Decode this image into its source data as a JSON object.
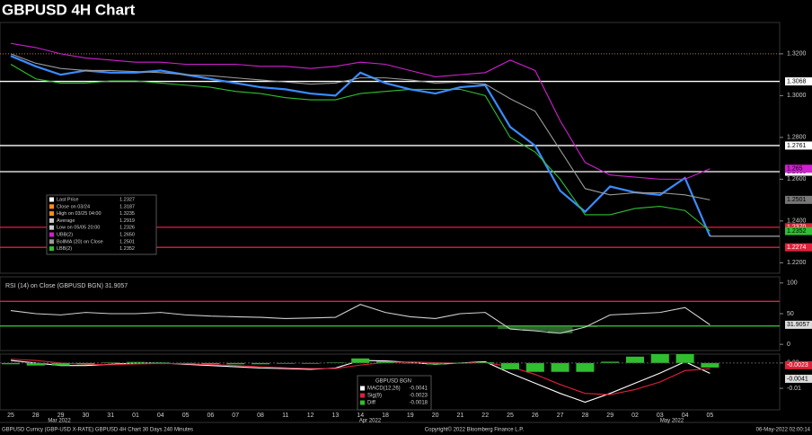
{
  "chart_data": [
    {
      "type": "line",
      "title": "GBPUSD 4H Chart",
      "categories": [
        "25",
        "28",
        "29",
        "30",
        "31",
        "01",
        "04",
        "05",
        "06",
        "07",
        "08",
        "11",
        "12",
        "13",
        "14",
        "18",
        "19",
        "20",
        "21",
        "22",
        "25",
        "26",
        "27",
        "28",
        "29",
        "02",
        "03",
        "04",
        "05"
      ],
      "month_labels": [
        "Mar 2022",
        "Apr 2022",
        "May 2022"
      ],
      "series": [
        {
          "name": "Last Price",
          "color": "#3a8cff",
          "values": [
            1.319,
            1.314,
            1.31,
            1.312,
            1.311,
            1.311,
            1.312,
            1.31,
            1.308,
            1.306,
            1.304,
            1.303,
            1.301,
            1.3,
            1.311,
            1.306,
            1.303,
            1.301,
            1.304,
            1.305,
            1.285,
            1.276,
            1.2545,
            1.2444,
            1.2565,
            1.2537,
            1.2525,
            1.2606,
            1.2327
          ]
        },
        {
          "name": "UBB(2)",
          "color": "#d020d0",
          "values": [
            1.325,
            1.323,
            1.32,
            1.318,
            1.317,
            1.316,
            1.316,
            1.315,
            1.315,
            1.315,
            1.314,
            1.314,
            1.313,
            1.314,
            1.316,
            1.315,
            1.312,
            1.309,
            1.31,
            1.311,
            1.317,
            1.312,
            1.288,
            1.268,
            1.262,
            1.261,
            1.26,
            1.26,
            1.265
          ]
        },
        {
          "name": "BollMA (20) on Close",
          "color": "#9a9a9a",
          "values": [
            1.32,
            1.3155,
            1.313,
            1.312,
            1.312,
            1.3115,
            1.311,
            1.31,
            1.3095,
            1.3085,
            1.3075,
            1.3065,
            1.3055,
            1.306,
            1.3085,
            1.3085,
            1.3075,
            1.306,
            1.3065,
            1.3055,
            1.2985,
            1.2925,
            1.274,
            1.2555,
            1.2525,
            1.2535,
            1.2535,
            1.2525,
            1.2501
          ]
        },
        {
          "name": "LBB(2)",
          "color": "#2fbf2f",
          "values": [
            1.315,
            1.308,
            1.306,
            1.306,
            1.307,
            1.307,
            1.306,
            1.305,
            1.304,
            1.302,
            1.301,
            1.299,
            1.298,
            1.298,
            1.301,
            1.302,
            1.303,
            1.303,
            1.303,
            1.3,
            1.28,
            1.273,
            1.26,
            1.243,
            1.243,
            1.246,
            1.247,
            1.245,
            1.2352
          ]
        }
      ],
      "legend": [
        {
          "name": "Last Price",
          "color": "#ffffff",
          "value": "1.2327"
        },
        {
          "name": "Close on 03/24",
          "color": "#ff8c1a",
          "value": "1.3187"
        },
        {
          "name": "High on 03/25 04:00",
          "color": "#ff8c1a",
          "value": "1.3235"
        },
        {
          "name": "Average",
          "color": "#cccccc",
          "value": "1.2919"
        },
        {
          "name": "Low on 05/05 20:00",
          "color": "#cccccc",
          "value": "1.2326"
        },
        {
          "name": "UBB(2)",
          "color": "#d020d0",
          "value": "1.2650"
        },
        {
          "name": "BollMA (20) on Close",
          "color": "#9a9a9a",
          "value": "1.2501"
        },
        {
          "name": "LBB(2)",
          "color": "#2fbf2f",
          "value": "1.2352"
        }
      ],
      "levels": [
        {
          "value": 1.32,
          "label": "1.3200",
          "color": "#c87a20",
          "style": "dotted"
        },
        {
          "value": 1.3068,
          "label": "1.3068",
          "color": "#ffffff",
          "style": "solid"
        },
        {
          "value": 1.2761,
          "label": "1.2761",
          "color": "#ffffff",
          "style": "solid"
        },
        {
          "value": 1.2636,
          "label": "1.2636",
          "color": "#ffffff",
          "style": "solid"
        },
        {
          "value": 1.237,
          "label": "1.2370",
          "color": "#e0203a",
          "style": "solid"
        },
        {
          "value": 1.2274,
          "label": "1.2274",
          "color": "#e0203a",
          "style": "solid"
        }
      ],
      "ylim": [
        1.215,
        1.335
      ],
      "yticks": [
        {
          "value": 1.32,
          "label": "1.3200"
        },
        {
          "value": 1.3,
          "label": "1.3000"
        },
        {
          "value": 1.28,
          "label": "1.2800"
        },
        {
          "value": 1.26,
          "label": "1.2600"
        },
        {
          "value": 1.24,
          "label": "1.2400"
        },
        {
          "value": 1.22,
          "label": "1.2200"
        }
      ]
    },
    {
      "type": "line",
      "label": "RSI (14) on Close (GBPUSD BGN) 31.9057",
      "series": [
        {
          "name": "RSI (14)",
          "color": "#d0d0d0",
          "values": [
            55,
            50,
            48,
            52,
            50,
            50,
            52,
            48,
            46,
            45,
            44,
            42,
            43,
            44,
            65,
            52,
            45,
            42,
            50,
            52,
            25,
            22,
            18,
            28,
            48,
            50,
            52,
            60,
            31.9057
          ]
        }
      ],
      "levels": [
        {
          "value": 70,
          "color": "#e0203a"
        },
        {
          "value": 30,
          "color": "#2fbf2f"
        }
      ],
      "ylim": [
        -10,
        110
      ],
      "yticks": [
        100,
        50,
        0
      ]
    },
    {
      "type": "line",
      "header": "GBPUSD BGN",
      "series": [
        {
          "name": "MACD(12,26)",
          "color": "#ffffff",
          "values": [
            0.001,
            0,
            -0.001,
            -0.001,
            -0.0005,
            0,
            0,
            -0.0005,
            -0.001,
            -0.0015,
            -0.002,
            -0.0022,
            -0.0025,
            -0.002,
            0.001,
            0.0008,
            0.0002,
            -0.0005,
            0,
            0.0005,
            -0.004,
            -0.008,
            -0.012,
            -0.0155,
            -0.012,
            -0.008,
            -0.004,
            0.0005,
            -0.0041
          ]
        },
        {
          "name": "Sig(9)",
          "color": "#e0203a",
          "values": [
            0.0015,
            0.001,
            0,
            -0.0005,
            -0.0007,
            -0.0004,
            -0.0002,
            -0.0003,
            -0.0006,
            -0.001,
            -0.0015,
            -0.0019,
            -0.0022,
            -0.0022,
            -0.0008,
            0.0002,
            0.0004,
            0.0001,
            -0.0001,
            0.0002,
            -0.0015,
            -0.0045,
            -0.0085,
            -0.012,
            -0.0125,
            -0.0105,
            -0.0075,
            -0.003,
            -0.0023
          ]
        },
        {
          "name": "Diff",
          "color": "#2fbf2f",
          "type": "bar",
          "values": [
            -0.0005,
            -0.001,
            -0.001,
            -0.0005,
            0.0002,
            0.0004,
            0.0002,
            -0.0002,
            -0.0004,
            -0.0005,
            -0.0005,
            -0.0003,
            -0.0003,
            0.0002,
            0.0018,
            0.0006,
            -0.0002,
            -0.0006,
            0.0001,
            0.0003,
            -0.0025,
            -0.0035,
            -0.0035,
            -0.0035,
            0.0005,
            0.0025,
            0.0035,
            0.0035,
            -0.0018
          ]
        }
      ],
      "ylim": [
        -0.0185,
        0.0035
      ],
      "yticks": [
        {
          "value": 0,
          "label": "0.00"
        },
        {
          "value": -0.01,
          "label": "-0.01"
        }
      ]
    }
  ],
  "footer": {
    "left": "GBPUSD Curncy (GBP-USD X-RATE) GBPUSD 4H Chart 30 Days 240 Minutes",
    "center": "Copyright© 2022 Bloomberg Finance L.P.",
    "right": "06-May-2022 02:00:14"
  }
}
